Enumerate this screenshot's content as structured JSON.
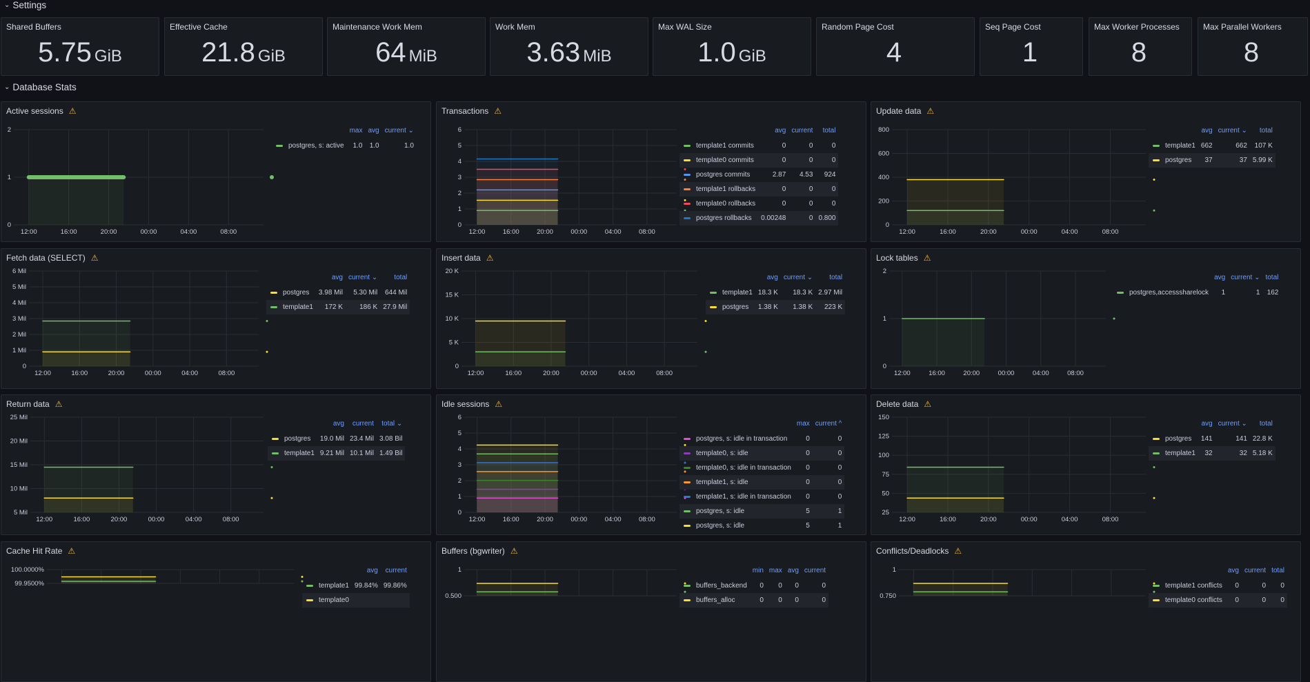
{
  "rows": {
    "settings": "Settings",
    "db_stats": "Database Stats"
  },
  "settings": [
    {
      "title": "Shared Buffers",
      "value": "5.75",
      "unit": "GiB"
    },
    {
      "title": "Effective Cache",
      "value": "21.8",
      "unit": "GiB"
    },
    {
      "title": "Maintenance Work Mem",
      "value": "64",
      "unit": "MiB"
    },
    {
      "title": "Work Mem",
      "value": "3.63",
      "unit": "MiB"
    },
    {
      "title": "Max WAL Size",
      "value": "1.0",
      "unit": "GiB"
    },
    {
      "title": "Random Page Cost",
      "value": "4",
      "unit": ""
    },
    {
      "title": "Seq Page Cost",
      "value": "1",
      "unit": ""
    },
    {
      "title": "Max Worker Processes",
      "value": "8",
      "unit": ""
    },
    {
      "title": "Max Parallel Workers",
      "value": "8",
      "unit": ""
    }
  ],
  "x_ticks": [
    "12:00",
    "16:00",
    "20:00",
    "00:00",
    "04:00",
    "08:00"
  ],
  "panels": [
    {
      "title": "Active sessions",
      "yticks": [
        "2",
        "1",
        "0"
      ],
      "cols": [
        "max",
        "avg",
        "current ⌄"
      ],
      "series": [
        {
          "name": "postgres, s: active",
          "color": "#73bf69",
          "vals": [
            "1.0",
            "1.0",
            "1.0"
          ]
        }
      ]
    },
    {
      "title": "Transactions",
      "yticks": [
        "6",
        "5",
        "4",
        "3",
        "2",
        "1",
        "0"
      ],
      "cols": [
        "avg",
        "current",
        "total"
      ],
      "series": [
        {
          "name": "template1 commits",
          "color": "#73bf69",
          "vals": [
            "0",
            "0",
            "0"
          ]
        },
        {
          "name": "template0 commits",
          "color": "#fade2a",
          "vals": [
            "0",
            "0",
            "0"
          ]
        },
        {
          "name": "postgres commits",
          "color": "#5794f2",
          "vals": [
            "2.87",
            "4.53",
            "924"
          ]
        },
        {
          "name": "template1 rollbacks",
          "color": "#ff7f3a",
          "vals": [
            "0",
            "0",
            "0"
          ]
        },
        {
          "name": "template0 rollbacks",
          "color": "#f2495c",
          "vals": [
            "0",
            "0",
            "0"
          ]
        },
        {
          "name": "postgres rollbacks",
          "color": "#1f78c1",
          "vals": [
            "0.00248",
            "0",
            "0.800"
          ]
        }
      ]
    },
    {
      "title": "Update data",
      "yticks": [
        "800",
        "600",
        "400",
        "200",
        "0"
      ],
      "cols": [
        "avg",
        "current ⌄",
        "total"
      ],
      "series": [
        {
          "name": "template1",
          "color": "#73bf69",
          "vals": [
            "662",
            "662",
            "107 K"
          ]
        },
        {
          "name": "postgres",
          "color": "#fade2a",
          "vals": [
            "37",
            "37",
            "5.99 K"
          ]
        }
      ]
    },
    {
      "title": "Fetch data (SELECT)",
      "yticks": [
        "6 Mil",
        "5 Mil",
        "4 Mil",
        "3 Mil",
        "2 Mil",
        "1 Mil",
        "0"
      ],
      "cols": [
        "avg",
        "current ⌄",
        "total"
      ],
      "series": [
        {
          "name": "postgres",
          "color": "#fade2a",
          "vals": [
            "3.98 Mil",
            "5.30 Mil",
            "644 Mil"
          ]
        },
        {
          "name": "template1",
          "color": "#73bf69",
          "vals": [
            "172 K",
            "186 K",
            "27.9 Mil"
          ]
        }
      ]
    },
    {
      "title": "Insert data",
      "yticks": [
        "20 K",
        "15 K",
        "10 K",
        "5 K",
        "0"
      ],
      "cols": [
        "avg",
        "current ⌄",
        "total"
      ],
      "series": [
        {
          "name": "template1",
          "color": "#73bf69",
          "vals": [
            "18.3 K",
            "18.3 K",
            "2.97 Mil"
          ]
        },
        {
          "name": "postgres",
          "color": "#fade2a",
          "vals": [
            "1.38 K",
            "1.38 K",
            "223 K"
          ]
        }
      ]
    },
    {
      "title": "Lock tables",
      "yticks": [
        "2",
        "1",
        "0"
      ],
      "cols": [
        "avg",
        "current ⌄",
        "total"
      ],
      "series": [
        {
          "name": "postgres,accesssharelock",
          "color": "#73bf69",
          "vals": [
            "1",
            "1",
            "162"
          ]
        }
      ]
    },
    {
      "title": "Return data",
      "yticks": [
        "25 Mil",
        "20 Mil",
        "15 Mil",
        "10 Mil",
        "5 Mil"
      ],
      "cols": [
        "avg",
        "current",
        "total ⌄"
      ],
      "series": [
        {
          "name": "postgres",
          "color": "#fade2a",
          "vals": [
            "19.0 Mil",
            "23.4 Mil",
            "3.08 Bil"
          ]
        },
        {
          "name": "template1",
          "color": "#73bf69",
          "vals": [
            "9.21 Mil",
            "10.1 Mil",
            "1.49 Bil"
          ]
        }
      ]
    },
    {
      "title": "Idle sessions",
      "yticks": [
        "6",
        "5",
        "4",
        "3",
        "2",
        "1",
        "0"
      ],
      "cols": [
        "max",
        "current ^"
      ],
      "series": [
        {
          "name": "postgres, s: idle in transaction",
          "color": "#e24dd3",
          "vals": [
            "0",
            "0"
          ]
        },
        {
          "name": "template0, s: idle",
          "color": "#8f3bb8",
          "vals": [
            "0",
            "0"
          ]
        },
        {
          "name": "template0, s: idle in transaction",
          "color": "#37872d",
          "vals": [
            "0",
            "0"
          ]
        },
        {
          "name": "template1, s: idle",
          "color": "#ff9830",
          "vals": [
            "0",
            "0"
          ]
        },
        {
          "name": "template1, s: idle in transaction",
          "color": "#3274d9",
          "vals": [
            "0",
            "0"
          ]
        },
        {
          "name": "postgres, s: idle",
          "color": "#73bf69",
          "vals": [
            "5",
            "1"
          ]
        },
        {
          "name": "postgres, s: idle",
          "color": "#fade2a",
          "vals": [
            "5",
            "1"
          ]
        }
      ]
    },
    {
      "title": "Delete data",
      "yticks": [
        "150",
        "125",
        "100",
        "75",
        "50",
        "25"
      ],
      "cols": [
        "avg",
        "current ⌄",
        "total"
      ],
      "series": [
        {
          "name": "postgres",
          "color": "#fade2a",
          "vals": [
            "141",
            "141",
            "22.8 K"
          ]
        },
        {
          "name": "template1",
          "color": "#73bf69",
          "vals": [
            "32",
            "32",
            "5.18 K"
          ]
        }
      ]
    },
    {
      "title": "Cache Hit Rate",
      "yticks": [
        "100.0000%",
        "99.9500%"
      ],
      "cols": [
        "avg",
        "current"
      ],
      "series": [
        {
          "name": "template1",
          "color": "#73bf69",
          "vals": [
            "99.84%",
            "99.86%"
          ]
        },
        {
          "name": "template0",
          "color": "#fade2a",
          "vals": [
            "",
            ""
          ]
        }
      ]
    },
    {
      "title": "Buffers (bgwriter)",
      "yticks": [
        "1",
        "0.500"
      ],
      "cols": [
        "min",
        "max",
        "avg",
        "current"
      ],
      "series": [
        {
          "name": "buffers_backend",
          "color": "#73bf69",
          "vals": [
            "0",
            "0",
            "0",
            "0"
          ]
        },
        {
          "name": "buffers_alloc",
          "color": "#fade2a",
          "vals": [
            "0",
            "0",
            "0",
            "0"
          ]
        }
      ]
    },
    {
      "title": "Conflicts/Deadlocks",
      "yticks": [
        "1",
        "0.750"
      ],
      "cols": [
        "avg",
        "current",
        "total"
      ],
      "series": [
        {
          "name": "template1 conflicts",
          "color": "#73bf69",
          "vals": [
            "0",
            "0",
            "0"
          ]
        },
        {
          "name": "template0 conflicts",
          "color": "#fade2a",
          "vals": [
            "0",
            "0",
            "0"
          ]
        }
      ]
    }
  ]
}
